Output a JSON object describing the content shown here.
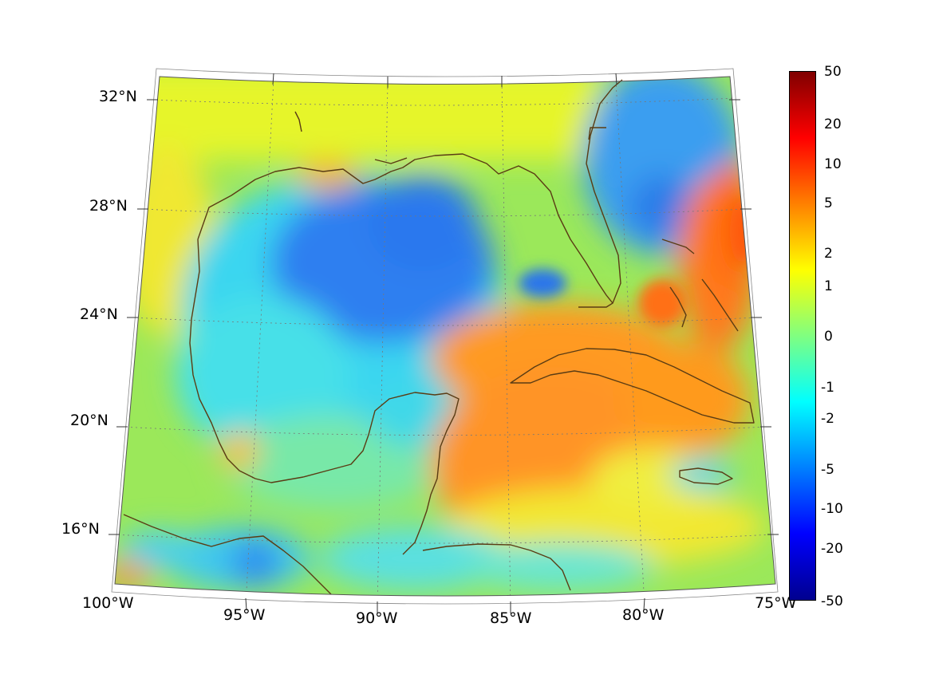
{
  "map": {
    "projection": "conic",
    "region": "Gulf of Mexico and Caribbean",
    "lat_labels": [
      "32°N",
      "28°N",
      "24°N",
      "20°N",
      "16°N"
    ],
    "lon_labels": [
      "100°W",
      "95°W",
      "90°W",
      "85°W",
      "80°W",
      "75°W"
    ],
    "coastline_color": "#5a3c14",
    "grid": "dotted"
  },
  "colorbar": {
    "colormap": "jet",
    "orientation": "vertical",
    "placement": "right",
    "tick_labels": [
      "50",
      "20",
      "10",
      "5",
      "2",
      "1",
      "0",
      "-1",
      "-2",
      "-5",
      "-10",
      "-20",
      "-50"
    ],
    "colors": [
      "#800000",
      "#ff0000",
      "#ff8000",
      "#ffff00",
      "#80ff80",
      "#00ffff",
      "#0080ff",
      "#0000ff",
      "#00008f"
    ]
  }
}
